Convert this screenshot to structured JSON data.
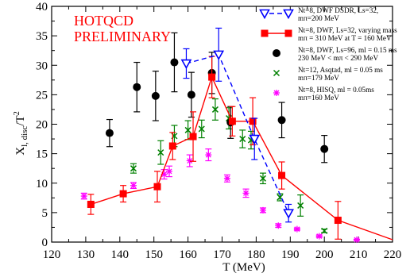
{
  "chart_data": {
    "type": "scatter",
    "xlabel": "T (MeV)",
    "ylabel_main": "X",
    "ylabel_sub": "l, disc",
    "ylabel_den": "/T",
    "ylabel_exp": "2",
    "xlim": [
      120,
      220
    ],
    "ylim": [
      0,
      40
    ],
    "xticks": [
      120,
      130,
      140,
      150,
      160,
      170,
      180,
      190,
      200,
      210,
      220
    ],
    "yticks": [
      0,
      5,
      10,
      15,
      20,
      25,
      30,
      35,
      40
    ],
    "grid": false,
    "legend_position": "top-right",
    "annotation": [
      "HOTQCD",
      "PRELIMINARY"
    ],
    "series": [
      {
        "name": "Nt=8, DWF DSDR, Ls=32, mπ=200 MeV",
        "legend_lines": [
          "Nt=8, DWF DSDR, Ls=32,",
          "mπ=200 MeV"
        ],
        "marker": "triangle-down",
        "color": "#0000ff",
        "line": "dashed",
        "points": [
          {
            "x": 159.5,
            "y": 30.3,
            "err": 2.5
          },
          {
            "x": 169.0,
            "y": 31.8,
            "err": 4.5
          },
          {
            "x": 179.5,
            "y": 17.5,
            "err": 3.5
          },
          {
            "x": 189.5,
            "y": 4.9,
            "err": 1.5
          }
        ]
      },
      {
        "name": "Nt=8, DWF, Ls=32, varying mass mπ = 310 MeV at T = 160 MeV",
        "legend_lines": [
          "Nt=8, DWF, Ls=32, varying mass",
          "mπ = 310 MeV at T = 160 MeV"
        ],
        "marker": "square",
        "color": "#ff0000",
        "line": "solid",
        "points": [
          {
            "x": 131.5,
            "y": 6.4,
            "err": 1.7
          },
          {
            "x": 141.0,
            "y": 8.2,
            "err": 1.4
          },
          {
            "x": 151.0,
            "y": 9.4,
            "err": 2.6
          },
          {
            "x": 155.5,
            "y": 16.3,
            "err": 2.3
          },
          {
            "x": 161.5,
            "y": 17.9,
            "err": 4.2
          },
          {
            "x": 167.0,
            "y": 28.0,
            "err": 3.5
          },
          {
            "x": 173.0,
            "y": 20.5,
            "err": 2.5
          },
          {
            "x": 179.0,
            "y": 20.5,
            "err": 4.0
          },
          {
            "x": 187.5,
            "y": 11.3,
            "err": 2.3
          },
          {
            "x": 204.0,
            "y": 3.7,
            "err": 3.2
          },
          {
            "x": 220.0,
            "y": 0.4,
            "err": 0
          }
        ]
      },
      {
        "name": "Nt=8, DWF, Ls=96, ml = 0.15 ms, 230 MeV < mπ < 290 MeV",
        "legend_lines": [
          "Nt=8, DWF, Ls=96, ml = 0.15 ms",
          "230 MeV < mπ < 290 MeV"
        ],
        "marker": "circle",
        "color": "#000000",
        "line": "none",
        "points": [
          {
            "x": 137.0,
            "y": 18.5,
            "err": 2.3
          },
          {
            "x": 145.0,
            "y": 26.3,
            "err": 4.2
          },
          {
            "x": 150.5,
            "y": 24.8,
            "err": 4.2
          },
          {
            "x": 156.0,
            "y": 30.5,
            "err": 5.0
          },
          {
            "x": 161.0,
            "y": 25.0,
            "err": 3.8
          },
          {
            "x": 167.0,
            "y": 28.7,
            "err": 3.5
          },
          {
            "x": 172.5,
            "y": 20.3,
            "err": 2.7
          },
          {
            "x": 187.5,
            "y": 20.7,
            "err": 3.0
          },
          {
            "x": 200.0,
            "y": 15.8,
            "err": 2.3
          }
        ]
      },
      {
        "name": "Nt=12, Asqtad, ml = 0.05 ms, mπ=179 MeV",
        "legend_lines": [
          "Nt=12, Asqtad, ml = 0.05 ms",
          "mπ=179 MeV"
        ],
        "marker": "x",
        "color": "#008000",
        "line": "none",
        "points": [
          {
            "x": 144.0,
            "y": 12.5,
            "err": 0.8
          },
          {
            "x": 152.0,
            "y": 15.2,
            "err": 2.0
          },
          {
            "x": 156.0,
            "y": 18.0,
            "err": 1.8
          },
          {
            "x": 160.0,
            "y": 19.0,
            "err": 1.6
          },
          {
            "x": 164.0,
            "y": 19.2,
            "err": 1.5
          },
          {
            "x": 168.0,
            "y": 22.5,
            "err": 1.8
          },
          {
            "x": 172.0,
            "y": 21.0,
            "err": 1.8
          },
          {
            "x": 176.0,
            "y": 17.5,
            "err": 1.5
          },
          {
            "x": 178.5,
            "y": 17.3,
            "err": 1.5
          },
          {
            "x": 182.0,
            "y": 10.8,
            "err": 0.9
          },
          {
            "x": 187.0,
            "y": 7.6,
            "err": 0.6
          },
          {
            "x": 193.0,
            "y": 6.2,
            "err": 1.8
          },
          {
            "x": 200.0,
            "y": 1.9,
            "err": 0.3
          }
        ]
      },
      {
        "name": "Nt=8, HISQ, ml = 0.05ms, mπ=160 MeV",
        "legend_lines": [
          "Nt=8, HISQ, ml = 0.05ms",
          "mπ=160 MeV"
        ],
        "marker": "asterisk",
        "color": "#ff00ff",
        "line": "none",
        "points": [
          {
            "x": 129.5,
            "y": 7.8,
            "err": 0.5
          },
          {
            "x": 144.0,
            "y": 9.6,
            "err": 0.5
          },
          {
            "x": 153.0,
            "y": 11.5,
            "err": 0.8
          },
          {
            "x": 154.5,
            "y": 12.0,
            "err": 0.9
          },
          {
            "x": 160.5,
            "y": 13.8,
            "err": 1.0
          },
          {
            "x": 166.0,
            "y": 14.8,
            "err": 1.0
          },
          {
            "x": 171.5,
            "y": 10.8,
            "err": 0.6
          },
          {
            "x": 177.0,
            "y": 8.3,
            "err": 0.7
          },
          {
            "x": 182.0,
            "y": 5.4,
            "err": 0.4
          },
          {
            "x": 186.5,
            "y": 2.8,
            "err": 0.3
          },
          {
            "x": 192.0,
            "y": 2.2,
            "err": 0.2
          },
          {
            "x": 198.5,
            "y": 1.0,
            "err": 0.2
          },
          {
            "x": 209.5,
            "y": 0.4,
            "err": 0.1
          }
        ]
      }
    ]
  }
}
